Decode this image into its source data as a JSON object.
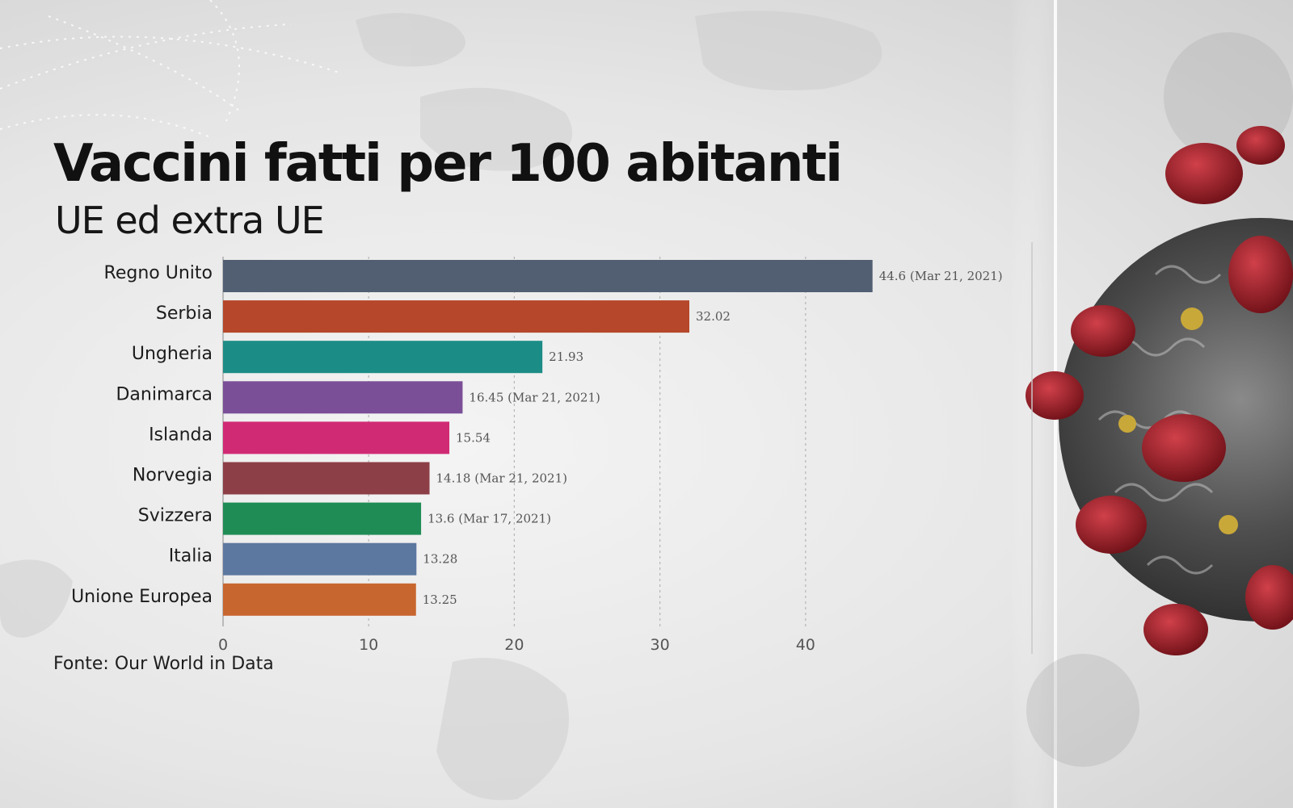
{
  "header": {
    "title": "Vaccini fatti per 100 abitanti",
    "subtitle": "UE ed extra UE"
  },
  "footer": {
    "source": "Fonte: Our World in Data"
  },
  "chart_data": {
    "type": "bar",
    "orientation": "horizontal",
    "title": "Vaccini fatti per 100 abitanti",
    "subtitle": "UE ed extra UE",
    "xlabel": "",
    "ylabel": "",
    "xlim": [
      0,
      47
    ],
    "grid": true,
    "categories": [
      "Regno Unito",
      "Serbia",
      "Ungheria",
      "Danimarca",
      "Islanda",
      "Norvegia",
      "Svizzera",
      "Italia",
      "Unione Europea"
    ],
    "values": [
      44.6,
      32.02,
      21.93,
      16.45,
      15.54,
      14.18,
      13.6,
      13.28,
      13.25
    ],
    "data_labels": [
      "44.6 (Mar 21, 2021)",
      "32.02",
      "21.93",
      "16.45 (Mar 21, 2021)",
      "15.54",
      "14.18 (Mar 21, 2021)",
      "13.6 (Mar 17, 2021)",
      "13.28",
      "13.25"
    ],
    "colors": [
      "#525f73",
      "#b6472a",
      "#1c8c86",
      "#7b4f98",
      "#d12a75",
      "#8d3f47",
      "#1f8c55",
      "#5c78a1",
      "#c8662f"
    ],
    "xticks": [
      0,
      10,
      20,
      30,
      40
    ],
    "xtick_labels": [
      "0",
      "10",
      "20",
      "30",
      "40"
    ]
  }
}
